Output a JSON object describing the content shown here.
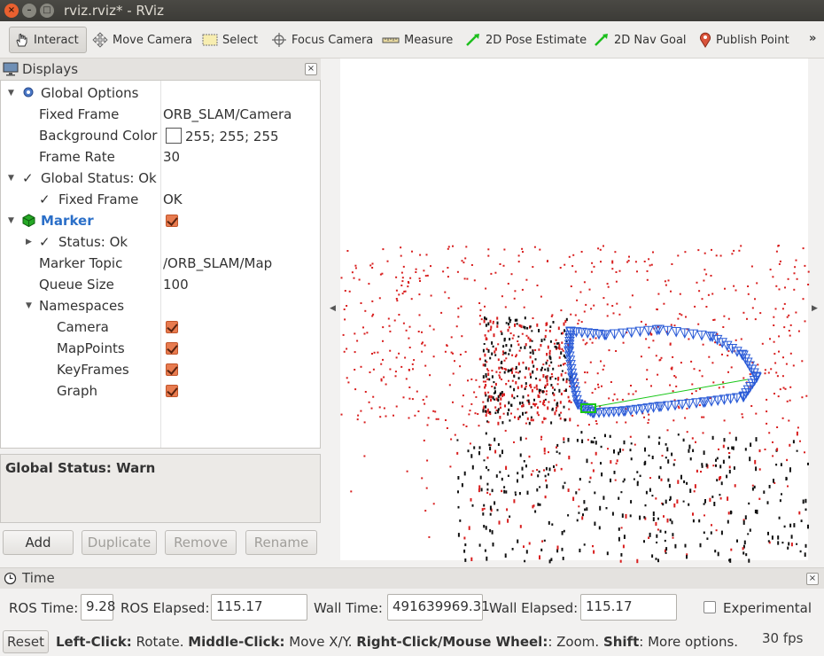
{
  "window": {
    "title": "rviz.rviz* - RViz"
  },
  "toolbar": {
    "tools": [
      {
        "label": "Interact",
        "icon": "hand-cursor-icon",
        "active": true
      },
      {
        "label": "Move Camera",
        "icon": "move-arrows-icon"
      },
      {
        "label": "Select",
        "icon": "select-box-icon"
      },
      {
        "label": "Focus Camera",
        "icon": "crosshair-icon"
      },
      {
        "label": "Measure",
        "icon": "ruler-icon"
      },
      {
        "label": "2D Pose Estimate",
        "icon": "green-arrow-icon"
      },
      {
        "label": "2D Nav Goal",
        "icon": "green-arrow-icon"
      },
      {
        "label": "Publish Point",
        "icon": "map-pin-icon"
      }
    ],
    "more": "»"
  },
  "displays": {
    "title": "Displays",
    "global_options": {
      "label": "Global Options",
      "fixed_frame_label": "Fixed Frame",
      "fixed_frame_value": "ORB_SLAM/Camera",
      "background_color_label": "Background Color",
      "background_color_value": "255; 255; 255",
      "frame_rate_label": "Frame Rate",
      "frame_rate_value": "30"
    },
    "global_status": {
      "label": "Global Status: Ok",
      "fixed_frame_label": "Fixed Frame",
      "fixed_frame_value": "OK"
    },
    "marker": {
      "label": "Marker",
      "status_label": "Status: Ok",
      "topic_label": "Marker Topic",
      "topic_value": "/ORB_SLAM/Map",
      "queue_label": "Queue Size",
      "queue_value": "100",
      "namespaces_label": "Namespaces",
      "namespaces": [
        "Camera",
        "MapPoints",
        "KeyFrames",
        "Graph"
      ]
    },
    "status_box": "Global Status: Warn",
    "buttons": {
      "add": "Add",
      "duplicate": "Duplicate",
      "remove": "Remove",
      "rename": "Rename"
    }
  },
  "time": {
    "title": "Time",
    "ros_time_label": "ROS Time:",
    "ros_time_value": "9.28",
    "ros_elapsed_label": "ROS Elapsed:",
    "ros_elapsed_value": "115.17",
    "wall_time_label": "Wall Time:",
    "wall_time_value": "491639969.31",
    "wall_elapsed_label": "Wall Elapsed:",
    "wall_elapsed_value": "115.17",
    "experimental_label": "Experimental"
  },
  "statusbar": {
    "reset": "Reset",
    "hint_left_click": "Left-Click:",
    "hint_left_action": " Rotate. ",
    "hint_middle_click": "Middle-Click:",
    "hint_middle_action": " Move X/Y. ",
    "hint_right_click": "Right-Click/Mouse Wheel:",
    "hint_right_action": ": Zoom. ",
    "hint_shift": "Shift",
    "hint_shift_action": ": More options.",
    "fps": "30 fps"
  },
  "colors": {
    "map_points_red": "#d81e1e",
    "map_points_black": "#111111",
    "keyframes_blue": "#2a5bd7",
    "graph_green": "#19c719",
    "accent_orange": "#e87b4f"
  }
}
